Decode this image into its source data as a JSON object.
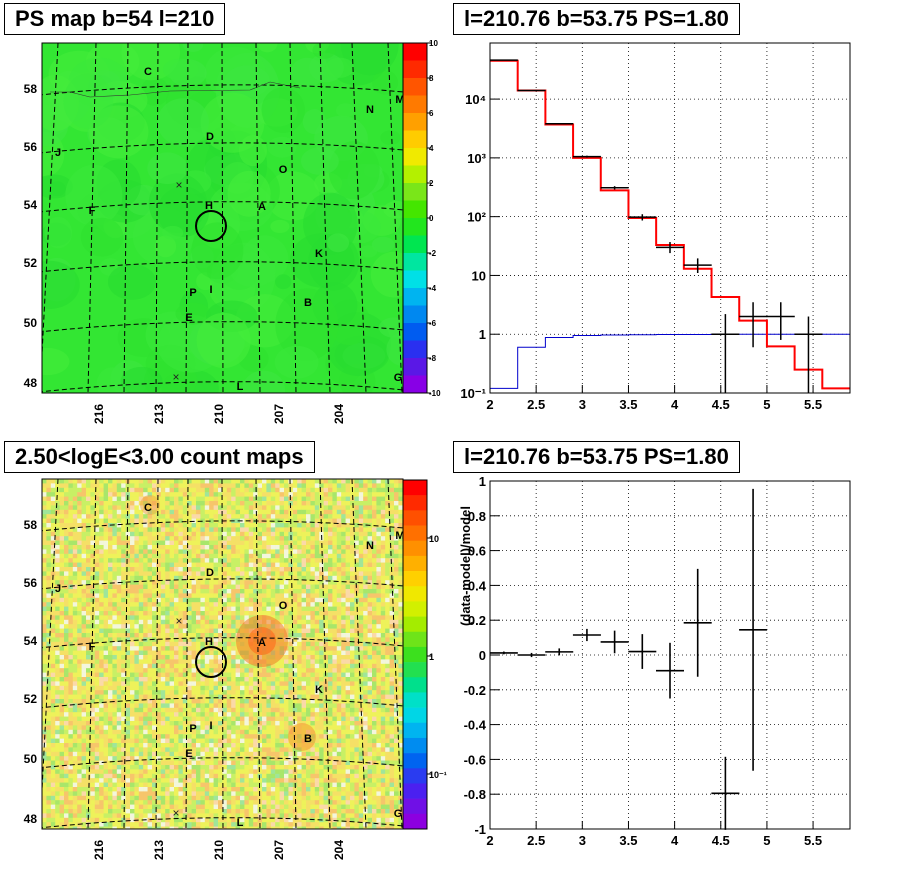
{
  "panels": {
    "map1": {
      "title": "PS map b=54 l=210"
    },
    "spec1": {
      "title": "l=210.76 b=53.75 PS=1.80"
    },
    "map2": {
      "title": "2.50<logE<3.00 count maps"
    },
    "resid": {
      "title": "l=210.76 b=53.75 PS=1.80"
    }
  },
  "colors": {
    "map1_background": "#33e633",
    "map2_background": "#ccf066",
    "model_line": "#ff0000",
    "background_line": "#0000cc",
    "data_points": "#000000",
    "roi_circle": "#000000"
  },
  "source_labels": [
    "C",
    "M",
    "N",
    "D",
    "J",
    "O",
    "H",
    "F",
    "A",
    "K",
    "P",
    "I",
    "B",
    "E",
    "L",
    "G"
  ],
  "map_axes": {
    "y_ticks": [
      "58",
      "56",
      "54",
      "52",
      "50",
      "48"
    ],
    "x_ticks": [
      "216",
      "213",
      "210",
      "207",
      "204"
    ]
  },
  "colorbar1": {
    "labels": [
      "10",
      "8",
      "6",
      "4",
      "2",
      "0",
      "-2",
      "-4",
      "-6",
      "-8",
      "-10"
    ]
  },
  "colorbar2": {
    "labels": [
      "10",
      "1",
      "10⁻¹"
    ]
  },
  "chart_data": [
    {
      "type": "heatmap",
      "title": "PS map b=54 l=210",
      "xlabel": "",
      "ylabel": "",
      "x_tick_labels": [
        "216",
        "213",
        "210",
        "207",
        "204"
      ],
      "y_tick_labels": [
        "58",
        "56",
        "54",
        "52",
        "50",
        "48"
      ],
      "z_range": [
        -10,
        10
      ],
      "colorbar_labels": [
        "10",
        "8",
        "6",
        "4",
        "2",
        "0",
        "-2",
        "-4",
        "-6",
        "-8",
        "-10"
      ],
      "sources": [
        "C",
        "M",
        "N",
        "D",
        "J",
        "O",
        "H",
        "F",
        "A",
        "K",
        "P",
        "I",
        "B",
        "E",
        "L",
        "G"
      ]
    },
    {
      "type": "line",
      "title": "l=210.76 b=53.75 PS=1.80",
      "xlabel": "",
      "ylabel": "",
      "xlim": [
        2,
        5.9
      ],
      "ylim": [
        0.1,
        90000
      ],
      "log_y": true,
      "grid": true,
      "x_tick_labels": [
        "2",
        "2.5",
        "3",
        "3.5",
        "4",
        "4.5",
        "5",
        "5.5"
      ],
      "y_tick_labels": [
        "10⁻¹",
        "1",
        "10",
        "10²",
        "10³",
        "10⁴"
      ],
      "bin_edges": [
        2.0,
        2.3,
        2.6,
        2.9,
        3.2,
        3.5,
        3.8,
        4.1,
        4.4,
        4.7,
        5.0,
        5.3,
        5.6,
        5.9
      ],
      "series": [
        {
          "values": [
            45000,
            14000,
            3700,
            1000,
            280,
            95,
            33,
            13,
            4.3,
            1.7,
            0.62,
            0.25,
            0.12
          ]
        },
        {
          "values": [
            0.12,
            0.6,
            0.88,
            0.95,
            0.97,
            0.98,
            0.99,
            0.99,
            1.0,
            1.0,
            1.0,
            1.0,
            1.0
          ]
        }
      ],
      "points": [
        {
          "x": 2.15,
          "y": 46000,
          "yerr_lo": 500,
          "yerr_hi": 500
        },
        {
          "x": 2.45,
          "y": 14000,
          "yerr_lo": 200,
          "yerr_hi": 200
        },
        {
          "x": 2.75,
          "y": 3800,
          "yerr_lo": 80,
          "yerr_hi": 80
        },
        {
          "x": 3.05,
          "y": 1050,
          "yerr_lo": 40,
          "yerr_hi": 40
        },
        {
          "x": 3.35,
          "y": 310,
          "yerr_lo": 20,
          "yerr_hi": 20
        },
        {
          "x": 3.65,
          "y": 98,
          "yerr_lo": 12,
          "yerr_hi": 12
        },
        {
          "x": 3.95,
          "y": 30,
          "yerr_lo": 6,
          "yerr_hi": 7
        },
        {
          "x": 4.25,
          "y": 15,
          "yerr_lo": 4,
          "yerr_hi": 4.5
        },
        {
          "x": 4.55,
          "y": 1,
          "yerr_lo": 0.9,
          "yerr_hi": 1.2
        },
        {
          "x": 4.85,
          "y": 2,
          "yerr_lo": 1.4,
          "yerr_hi": 1.5
        },
        {
          "x": 5.15,
          "y": 2,
          "yerr_lo": 1.2,
          "yerr_hi": 1.5
        },
        {
          "x": 5.45,
          "y": 1,
          "yerr_lo": 0.9,
          "yerr_hi": 1.0
        }
      ]
    },
    {
      "type": "heatmap",
      "title": "2.50<logE<3.00 count maps",
      "xlabel": "",
      "ylabel": "",
      "x_tick_labels": [
        "216",
        "213",
        "210",
        "207",
        "204"
      ],
      "y_tick_labels": [
        "58",
        "56",
        "54",
        "52",
        "50",
        "48"
      ],
      "log_z": true,
      "colorbar_labels": [
        "10",
        "1",
        "10⁻¹"
      ],
      "sources": [
        "C",
        "M",
        "N",
        "D",
        "J",
        "O",
        "H",
        "F",
        "A",
        "K",
        "P",
        "I",
        "B",
        "E",
        "L",
        "G"
      ]
    },
    {
      "type": "scatter",
      "title": "l=210.76 b=53.75 PS=1.80",
      "xlabel": "",
      "ylabel": "(data-model)/model",
      "xlim": [
        2,
        5.9
      ],
      "ylim": [
        -1,
        1
      ],
      "grid": true,
      "x_tick_labels": [
        "2",
        "2.5",
        "3",
        "3.5",
        "4",
        "4.5",
        "5",
        "5.5"
      ],
      "y_tick_labels": [
        "1",
        "0.8",
        "0.6",
        "0.4",
        "0.2",
        "0",
        "-0.2",
        "-0.4",
        "-0.6",
        "-0.8",
        "-1"
      ],
      "points": [
        {
          "x": 2.15,
          "y": 0.012,
          "yerr": 0.008
        },
        {
          "x": 2.45,
          "y": 0.0,
          "yerr": 0.012
        },
        {
          "x": 2.75,
          "y": 0.018,
          "yerr": 0.02
        },
        {
          "x": 3.05,
          "y": 0.115,
          "yerr": 0.035
        },
        {
          "x": 3.35,
          "y": 0.075,
          "yerr": 0.065
        },
        {
          "x": 3.65,
          "y": 0.02,
          "yerr": 0.1
        },
        {
          "x": 3.95,
          "y": -0.09,
          "yerr": 0.16
        },
        {
          "x": 4.25,
          "y": 0.185,
          "yerr": 0.31
        },
        {
          "x": 4.55,
          "y": -0.795,
          "yerr": 0.21
        },
        {
          "x": 4.85,
          "y": 0.145,
          "yerr": 0.81
        }
      ]
    }
  ]
}
